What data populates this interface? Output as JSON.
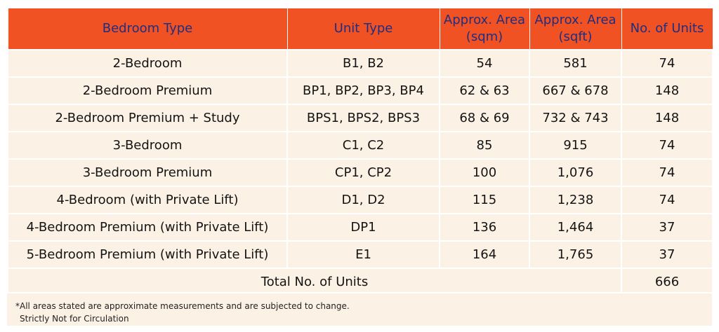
{
  "table": {
    "headers": [
      "Bedroom Type",
      "Unit Type",
      "Approx. Area (sqm)",
      "Approx. Area (sqft)",
      "No. of Units"
    ],
    "rows": [
      [
        "2-Bedroom",
        "B1, B2",
        "54",
        "581",
        "74"
      ],
      [
        "2-Bedroom Premium",
        "BP1, BP2, BP3, BP4",
        "62 & 63",
        "667 & 678",
        "148"
      ],
      [
        "2-Bedroom Premium + Study",
        "BPS1, BPS2, BPS3",
        "68 & 69",
        "732 & 743",
        "148"
      ],
      [
        "3-Bedroom",
        "C1, C2",
        "85",
        "915",
        "74"
      ],
      [
        "3-Bedroom Premium",
        "CP1, CP2",
        "100",
        "1,076",
        "74"
      ],
      [
        "4-Bedroom (with Private Lift)",
        "D1, D2",
        "115",
        "1,238",
        "74"
      ],
      [
        "4-Bedroom Premium (with Private Lift)",
        "DP1",
        "136",
        "1,464",
        "37"
      ],
      [
        "5-Bedroom Premium (with Private Lift)",
        "E1",
        "164",
        "1,765",
        "37"
      ]
    ],
    "total_label": "Total No. of Units",
    "total_value": "666"
  },
  "notes": {
    "disclaimer": "*All areas stated are approximate measurements and are subjected to change.",
    "circulation": "Strictly Not for Circulation"
  },
  "colors": {
    "header_bg": "#f05223",
    "header_text": "#1f2e80",
    "body_bg": "#fbf1e4"
  }
}
